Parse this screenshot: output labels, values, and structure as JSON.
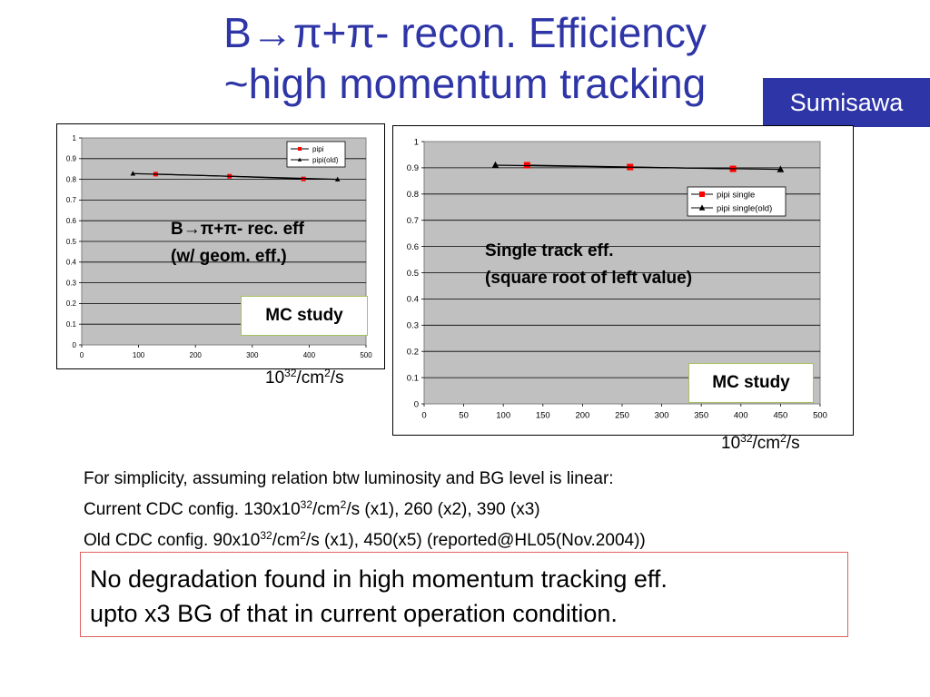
{
  "slide": {
    "title_line1": "B→π+π- recon. Efficiency",
    "title_line2": "~high momentum tracking",
    "author": "Sumisawa"
  },
  "labels": {
    "left_chart_caption_line1": "B→π+π- rec. eff",
    "left_chart_caption_line2": "(w/ geom. eff.)",
    "right_chart_caption_line1": "Single track eff.",
    "right_chart_caption_line2": "(square root of left value)",
    "mc_study": "MC study",
    "unit_base": "10",
    "unit_exp": "32",
    "unit_mid": "/cm",
    "unit_exp2": "2",
    "unit_tail": "/s"
  },
  "notes": {
    "line1": "For simplicity, assuming relation btw luminosity and BG level is linear:",
    "line2_a": "Current CDC config. 130x10",
    "line2_exp": "32",
    "line2_b": "/cm",
    "line2_exp2": "2",
    "line2_c": "/s (x1), 260 (x2), 390 (x3)",
    "line3_a": "Old CDC config. 90x10",
    "line3_exp": "32",
    "line3_b": "/cm",
    "line3_exp2": "2",
    "line3_c": "/s (x1), 450(x5) (reported@HL05(Nov.2004))"
  },
  "conclusion": {
    "line1": "No degradation found in high momentum tracking eff.",
    "line2": "upto x3 BG of that in current operation condition."
  },
  "colors": {
    "title": "#2e35a6",
    "badge_bg": "#2e35a6",
    "plot_bg": "#c0c0c0",
    "series_new": "#ff0000",
    "series_old": "#000000",
    "line": "#000000",
    "mc_border": "#a8c060",
    "conclusion_border": "#e06060"
  },
  "chart_data": [
    {
      "type": "line",
      "title": "",
      "xlabel": "",
      "ylabel": "",
      "xlim": [
        0,
        500
      ],
      "ylim": [
        0,
        1
      ],
      "x_ticks": [
        "0",
        "100",
        "200",
        "300",
        "400",
        "500"
      ],
      "y_ticks": [
        "0",
        "0.1",
        "0.2",
        "0.3",
        "0.4",
        "0.5",
        "0.6",
        "0.7",
        "0.8",
        "0.9",
        "1"
      ],
      "grid": true,
      "legend_position": "top-right",
      "series": [
        {
          "name": "pipi",
          "marker": "square",
          "x": [
            130,
            260,
            390
          ],
          "y": [
            0.825,
            0.815,
            0.802
          ]
        },
        {
          "name": "pipi(old)",
          "marker": "triangle",
          "x": [
            90,
            450
          ],
          "y": [
            0.828,
            0.8
          ]
        }
      ]
    },
    {
      "type": "line",
      "title": "",
      "xlabel": "",
      "ylabel": "",
      "xlim": [
        0,
        500
      ],
      "ylim": [
        0,
        1
      ],
      "x_ticks": [
        "0",
        "50",
        "100",
        "150",
        "200",
        "250",
        "300",
        "350",
        "400",
        "450",
        "500"
      ],
      "y_ticks": [
        "0",
        "0.1",
        "0.2",
        "0.3",
        "0.4",
        "0.5",
        "0.6",
        "0.7",
        "0.8",
        "0.9",
        "1"
      ],
      "grid": true,
      "legend_position": "right",
      "series": [
        {
          "name": "pipi single",
          "marker": "square",
          "x": [
            130,
            260,
            390
          ],
          "y": [
            0.91,
            0.903,
            0.896
          ]
        },
        {
          "name": "pipi single(old)",
          "marker": "triangle",
          "x": [
            90,
            450
          ],
          "y": [
            0.91,
            0.894
          ]
        }
      ]
    }
  ]
}
